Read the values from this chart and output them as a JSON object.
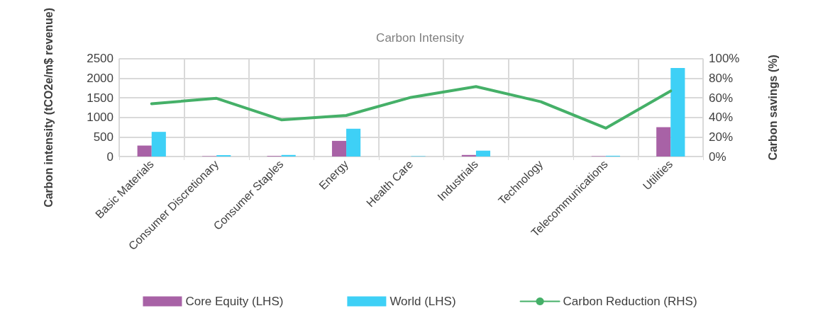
{
  "chart_data": {
    "type": "bar",
    "title": "Carbon Intensity",
    "ylabel": "Carbon intensity (tCO2e/m$ revenue)",
    "y2label": "Carbon savings (%)",
    "categories": [
      "Basic Materials",
      "Consumer Discretionary",
      "Consumer Staples",
      "Energy",
      "Health Care",
      "Industrials",
      "Technology",
      "Telecommunications",
      "Utilities"
    ],
    "series": [
      {
        "name": "Core Equity (LHS)",
        "color": "#a862a6",
        "values": [
          280,
          10,
          15,
          400,
          0,
          40,
          0,
          10,
          750
        ]
      },
      {
        "name": "World (LHS)",
        "color": "#3ed0f6",
        "values": [
          630,
          35,
          40,
          710,
          10,
          150,
          0,
          20,
          2260
        ]
      },
      {
        "name": "Carbon Reduction (RHS)",
        "type": "line",
        "axis": "y2",
        "color": "#45b068",
        "values": [
          54,
          59.5,
          37.5,
          42,
          60.5,
          71.5,
          56,
          29,
          67
        ]
      }
    ],
    "ylim": [
      0,
      2500
    ],
    "yticks": [
      0,
      500,
      1000,
      1500,
      2000,
      2500
    ],
    "y2lim": [
      0,
      100
    ],
    "y2ticks": [
      {
        "value": 0,
        "label": "0%"
      },
      {
        "value": 20,
        "label": "20%"
      },
      {
        "value": 40,
        "label": "40%"
      },
      {
        "value": 60,
        "label": "60%"
      },
      {
        "value": 80,
        "label": "80%"
      },
      {
        "value": 100,
        "label": "100%"
      }
    ],
    "grid": true,
    "legend": "bottom",
    "marker": "none",
    "line_style": "solid"
  }
}
